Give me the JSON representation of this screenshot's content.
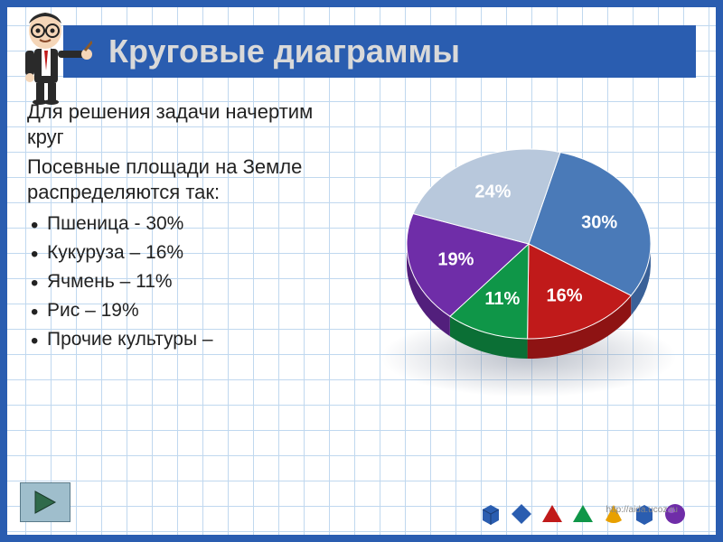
{
  "title": "Круговые диаграммы",
  "intro1": "Для решения задачи начертим круг",
  "intro2": "Посевные площади на Земле распределяются так:",
  "bullets": [
    "Пшеница - 30%",
    "Кукуруза – 16%",
    "Ячмень – 11%",
    "Рис – 19%",
    "Прочие культуры –"
  ],
  "pie": {
    "type": "pie",
    "slices": [
      {
        "label": "30%",
        "value": 30,
        "color": "#4a7ab8",
        "dark": "#3a6198"
      },
      {
        "label": "16%",
        "value": 16,
        "color": "#c01a1a",
        "dark": "#8e1313"
      },
      {
        "label": "11%",
        "value": 11,
        "color": "#0f9648",
        "dark": "#0b6f35"
      },
      {
        "label": "19%",
        "value": 19,
        "color": "#6f2da8",
        "dark": "#521f7c"
      },
      {
        "label": "24%",
        "value": 24,
        "color": "#b8c8dc",
        "dark": "#8fa2ba"
      }
    ],
    "start_angle": -75,
    "background": "#ffffff",
    "label_color": "#ffffff",
    "label_fontsize": 20,
    "depth": 22
  },
  "shapes": {
    "colors": [
      "#2a5db0",
      "#2a5db0",
      "#c01a1a",
      "#0f9648",
      "#e8a000",
      "#2a5db0",
      "#6f2da8"
    ]
  },
  "watermark": "http://aida.ucoz.ru",
  "grid": {
    "cell": 28,
    "line_color": "#c0d8ef"
  },
  "border_color": "#2a5db0",
  "title_bg": "#2a5db0",
  "title_color": "#d9d9d9",
  "title_fontsize": 36,
  "body_fontsize": 22
}
